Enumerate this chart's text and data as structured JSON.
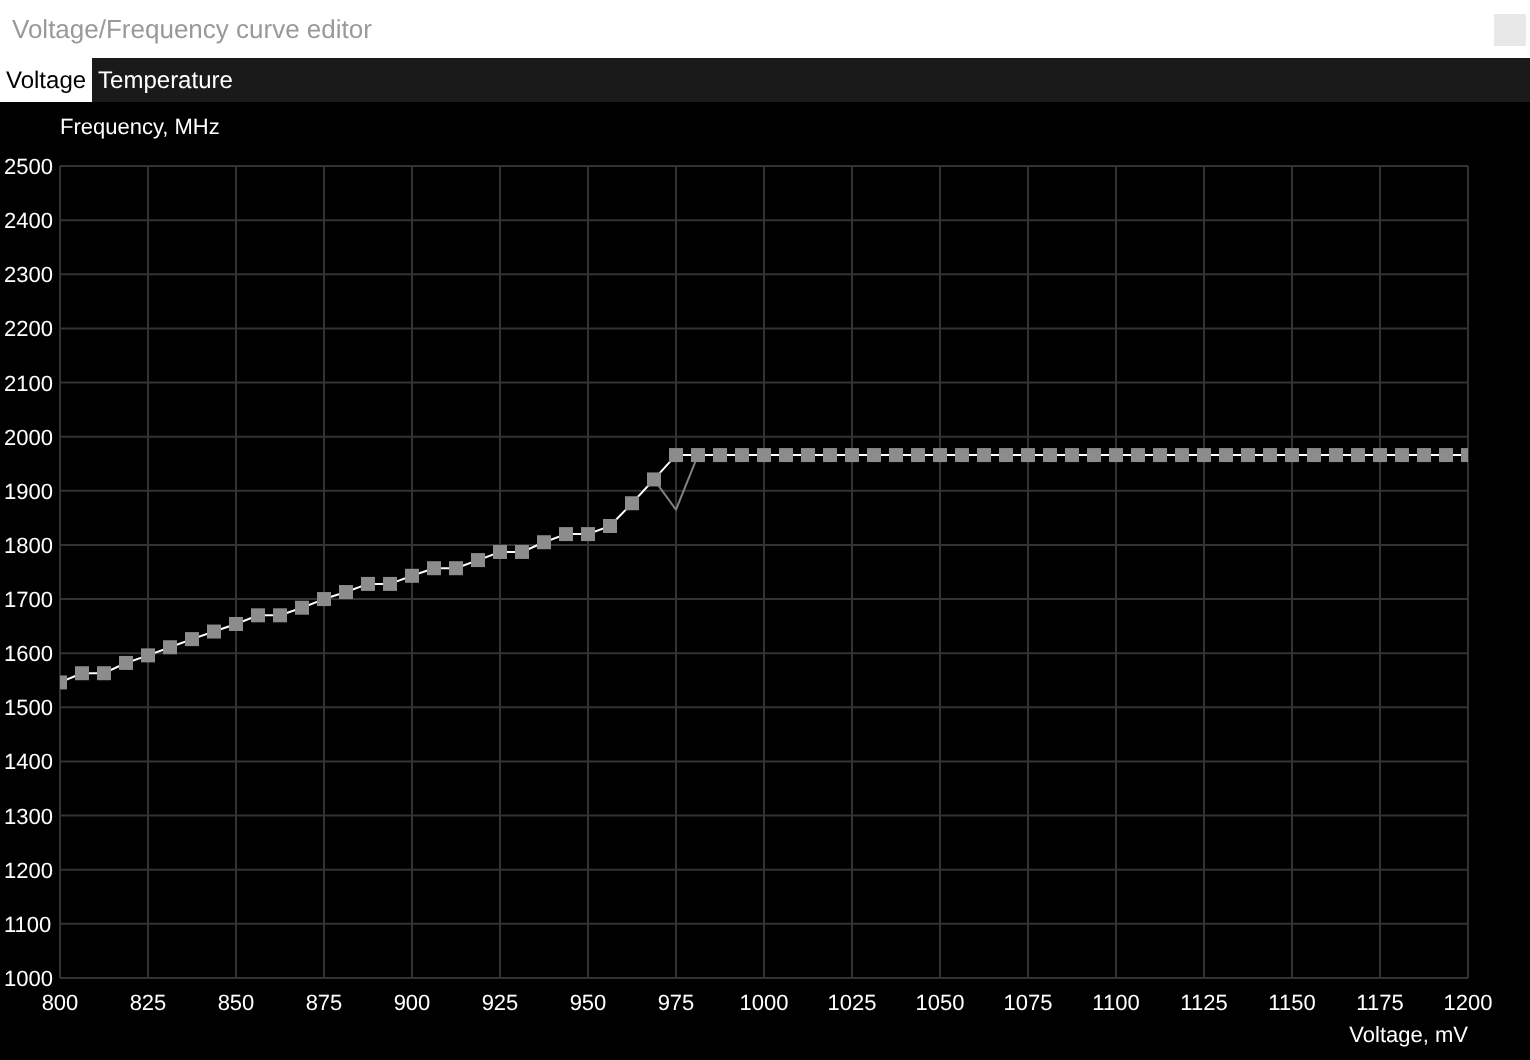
{
  "chart_data": {
    "type": "line",
    "title": "Voltage/Frequency curve editor",
    "xlabel": "Voltage, mV",
    "ylabel": "Frequency, MHz",
    "annotations": [
      "Voltage",
      "Temperature"
    ],
    "x": [
      800,
      806.25,
      812.5,
      818.75,
      825,
      831.25,
      837.5,
      843.75,
      850,
      856.25,
      862.5,
      868.75,
      875,
      881.25,
      887.5,
      893.75,
      900,
      906.25,
      912.5,
      918.75,
      925,
      931.25,
      937.5,
      943.75,
      950,
      956.25,
      962.5,
      968.75,
      975,
      981.25,
      987.5,
      993.75,
      1000,
      1006.25,
      1012.5,
      1018.75,
      1025,
      1031.25,
      1037.5,
      1043.75,
      1050,
      1056.25,
      1062.5,
      1068.75,
      1075,
      1081.25,
      1087.5,
      1093.75,
      1100,
      1106.25,
      1112.5,
      1118.75,
      1125,
      1131.25,
      1137.5,
      1143.75,
      1150,
      1156.25,
      1162.5,
      1168.75,
      1175,
      1181.25,
      1187.5,
      1193.75,
      1200
    ],
    "series": [
      {
        "color": "#ffffff",
        "marker": "square",
        "values": [
          1546,
          1563,
          1563,
          1582,
          1596,
          1611,
          1626,
          1640,
          1654,
          1670,
          1670,
          1684,
          1700,
          1713,
          1728,
          1728,
          1743,
          1757,
          1757,
          1772,
          1787,
          1787,
          1805,
          1820,
          1820,
          1835,
          1877,
          1921,
          1966,
          1966,
          1966,
          1966,
          1966,
          1966,
          1966,
          1966,
          1966,
          1966,
          1966,
          1966,
          1966,
          1966,
          1966,
          1966,
          1966,
          1966,
          1966,
          1966,
          1966,
          1966,
          1966,
          1966,
          1966,
          1966,
          1966,
          1966,
          1966,
          1966,
          1966,
          1966,
          1966,
          1966,
          1966,
          1966,
          1966
        ]
      },
      {
        "color": "#808080",
        "x": [
          968.75,
          975,
          981.25
        ],
        "values": [
          1921,
          1865,
          1966
        ]
      }
    ],
    "xlim": [
      800,
      1200
    ],
    "xticks": [
      800,
      825,
      850,
      875,
      900,
      925,
      950,
      975,
      1000,
      1025,
      1050,
      1075,
      1100,
      1125,
      1150,
      1175,
      1200
    ],
    "ylim": [
      1000,
      2500
    ],
    "yticks": [
      1000,
      1100,
      1200,
      1300,
      1400,
      1500,
      1600,
      1700,
      1800,
      1900,
      2000,
      2100,
      2200,
      2300,
      2400,
      2500
    ],
    "grid": true
  }
}
